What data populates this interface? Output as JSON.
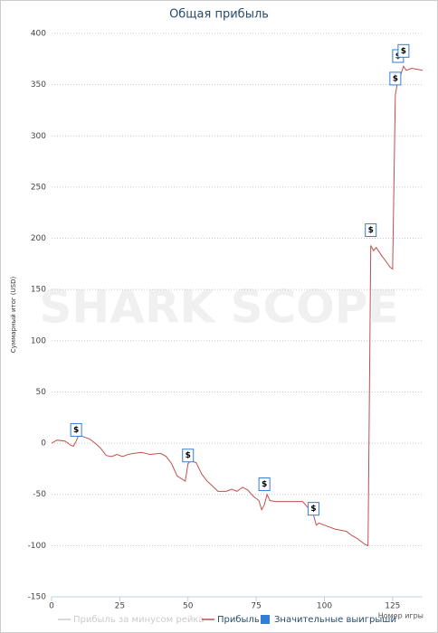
{
  "chart_data": {
    "type": "line",
    "title": "Общая прибыль",
    "watermark": "SHARK SCOPE",
    "ylabel": "Суммарный итог (USD)",
    "xlabel": "Номер игры",
    "xlim": [
      0,
      136
    ],
    "ylim": [
      -150,
      400
    ],
    "xticks": [
      0,
      25,
      50,
      75,
      100,
      125
    ],
    "yticks": [
      -150,
      -100,
      -50,
      0,
      50,
      100,
      150,
      200,
      250,
      300,
      350,
      400
    ],
    "grid": true,
    "legend": "bottom",
    "marker_label": "$",
    "series": [
      {
        "name": "Прибыль за минусом рейка",
        "color": "#cccccc",
        "visible": false
      },
      {
        "name": "Прибыль",
        "color": "#c0504d",
        "x": [
          0,
          2,
          5,
          7,
          8,
          9,
          10,
          12,
          14,
          16,
          18,
          20,
          22,
          24,
          26,
          28,
          30,
          33,
          36,
          40,
          42,
          44,
          46,
          49,
          50,
          51,
          53,
          55,
          57,
          59,
          61,
          64,
          66,
          68,
          70,
          72,
          74,
          76,
          77,
          78,
          79,
          80,
          82,
          88,
          92,
          94,
          96,
          97,
          98,
          100,
          104,
          108,
          110,
          112,
          114,
          115,
          116,
          117,
          118,
          119,
          121,
          123,
          124,
          125,
          126,
          127,
          128,
          129,
          130,
          132,
          136
        ],
        "values": [
          0,
          3,
          2,
          -2,
          -3,
          2,
          8,
          6,
          4,
          0,
          -5,
          -12,
          -13,
          -11,
          -13,
          -11,
          -10,
          -9,
          -11,
          -10,
          -13,
          -20,
          -32,
          -37,
          -20,
          -17,
          -19,
          -30,
          -37,
          -42,
          -47,
          -47,
          -45,
          -47,
          -43,
          -46,
          -52,
          -56,
          -65,
          -60,
          -50,
          -56,
          -57,
          -57,
          -57,
          -63,
          -70,
          -80,
          -78,
          -80,
          -84,
          -86,
          -90,
          -93,
          -97,
          -99,
          -100,
          193,
          188,
          191,
          183,
          176,
          172,
          170,
          340,
          355,
          360,
          368,
          364,
          366,
          364
        ]
      },
      {
        "name": "Значительные выигрыши",
        "color": "#2f7ed8",
        "type": "scatter",
        "x": [
          9,
          50,
          78,
          96,
          117,
          126,
          127,
          129
        ],
        "values": [
          5,
          -20,
          -48,
          -72,
          200,
          348,
          370,
          375
        ]
      }
    ]
  }
}
